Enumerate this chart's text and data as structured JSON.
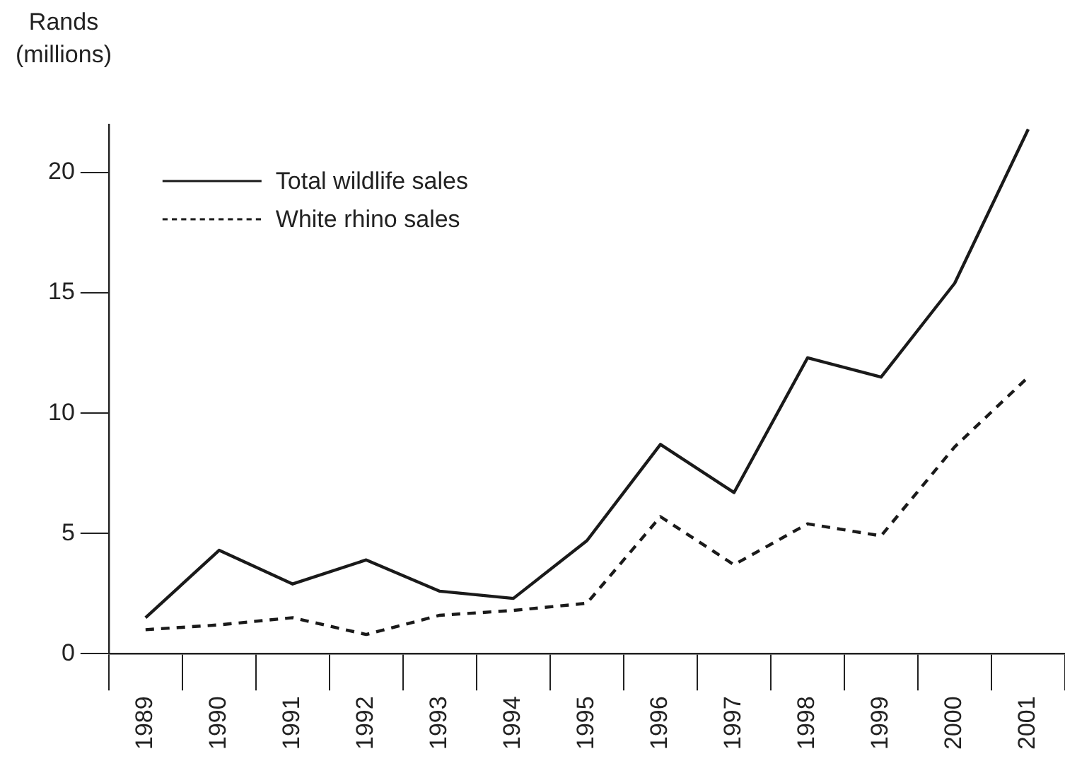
{
  "chart_data": {
    "type": "line",
    "ylabel": "Rands (millions)",
    "categories": [
      "1989",
      "1990",
      "1991",
      "1992",
      "1993",
      "1994",
      "1995",
      "1996",
      "1997",
      "1998",
      "1999",
      "2000",
      "2001"
    ],
    "series": [
      {
        "name": "Total wildlife sales",
        "color": "#1a1a1a",
        "line_style": "solid",
        "values": [
          1.5,
          4.3,
          2.9,
          3.9,
          2.6,
          2.3,
          4.7,
          8.7,
          6.7,
          12.3,
          11.5,
          15.4,
          21.8
        ]
      },
      {
        "name": "White rhino sales",
        "color": "#1a1a1a",
        "line_style": "dashed",
        "values": [
          1.0,
          1.2,
          1.5,
          0.8,
          1.6,
          1.8,
          2.1,
          5.7,
          3.7,
          5.4,
          4.9,
          8.6,
          11.5
        ]
      }
    ],
    "ylim": [
      0,
      22
    ],
    "yticks": [
      0,
      5,
      10,
      15,
      20
    ],
    "grid": false,
    "legend": "top left",
    "marker": "none"
  }
}
